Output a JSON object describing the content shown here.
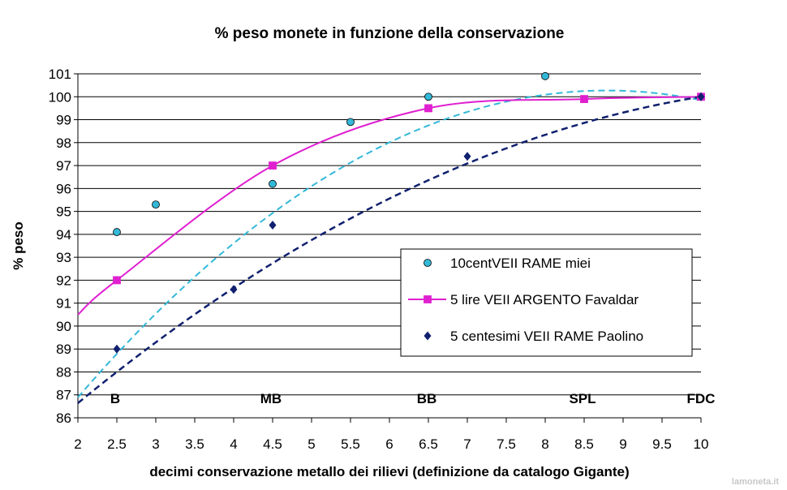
{
  "chart_data": {
    "type": "scatter",
    "title": "% peso monete in funzione della conservazione",
    "xlabel": "decimi conservazione metallo dei rilievi (definizione da catalogo Gigante)",
    "ylabel": "% peso",
    "xlim": [
      2,
      10
    ],
    "ylim": [
      86,
      101
    ],
    "xticks": [
      "2",
      "2.5",
      "3",
      "3.5",
      "4",
      "4.5",
      "5",
      "5.5",
      "6",
      "6.5",
      "7",
      "7.5",
      "8",
      "8.5",
      "9",
      "9.5",
      "10"
    ],
    "yticks": [
      "86",
      "87",
      "88",
      "89",
      "90",
      "91",
      "92",
      "93",
      "94",
      "95",
      "96",
      "97",
      "98",
      "99",
      "100",
      "101"
    ],
    "grid": "horizontal",
    "legend_position": "right-center",
    "grade_labels": [
      {
        "x": 2.5,
        "label": "B"
      },
      {
        "x": 4.5,
        "label": "MB"
      },
      {
        "x": 6.5,
        "label": "BB"
      },
      {
        "x": 8.5,
        "label": "SPL"
      },
      {
        "x": 10,
        "label": "FDC"
      }
    ],
    "series": [
      {
        "name": "10centVEII RAME miei",
        "color": "#33b8d8",
        "marker": "circle",
        "x": [
          2.5,
          3,
          4.5,
          5.5,
          6.5,
          8,
          10
        ],
        "y": [
          94.1,
          95.3,
          96.2,
          98.9,
          100.0,
          100.9,
          100.0
        ],
        "trend_coef": [
          77.85,
          5.1,
          -0.29
        ]
      },
      {
        "name": "5 lire VEII ARGENTO Favaldar",
        "color": "#e020d0",
        "marker": "square",
        "x": [
          2.5,
          4.5,
          6.5,
          8.5,
          10
        ],
        "y": [
          92.0,
          97.0,
          99.5,
          99.9,
          100.0
        ],
        "connect": true,
        "trend_coef": []
      },
      {
        "name": "5 centesimi VEII RAME Paolino",
        "color": "#10206e",
        "marker": "diamond",
        "x": [
          2.5,
          4,
          4.5,
          7,
          10
        ],
        "y": [
          89.0,
          91.6,
          94.4,
          97.4,
          100.0
        ],
        "trend_coef": [
          80.5,
          3.35,
          -0.14
        ]
      }
    ]
  },
  "watermark": "lamoneta.it"
}
